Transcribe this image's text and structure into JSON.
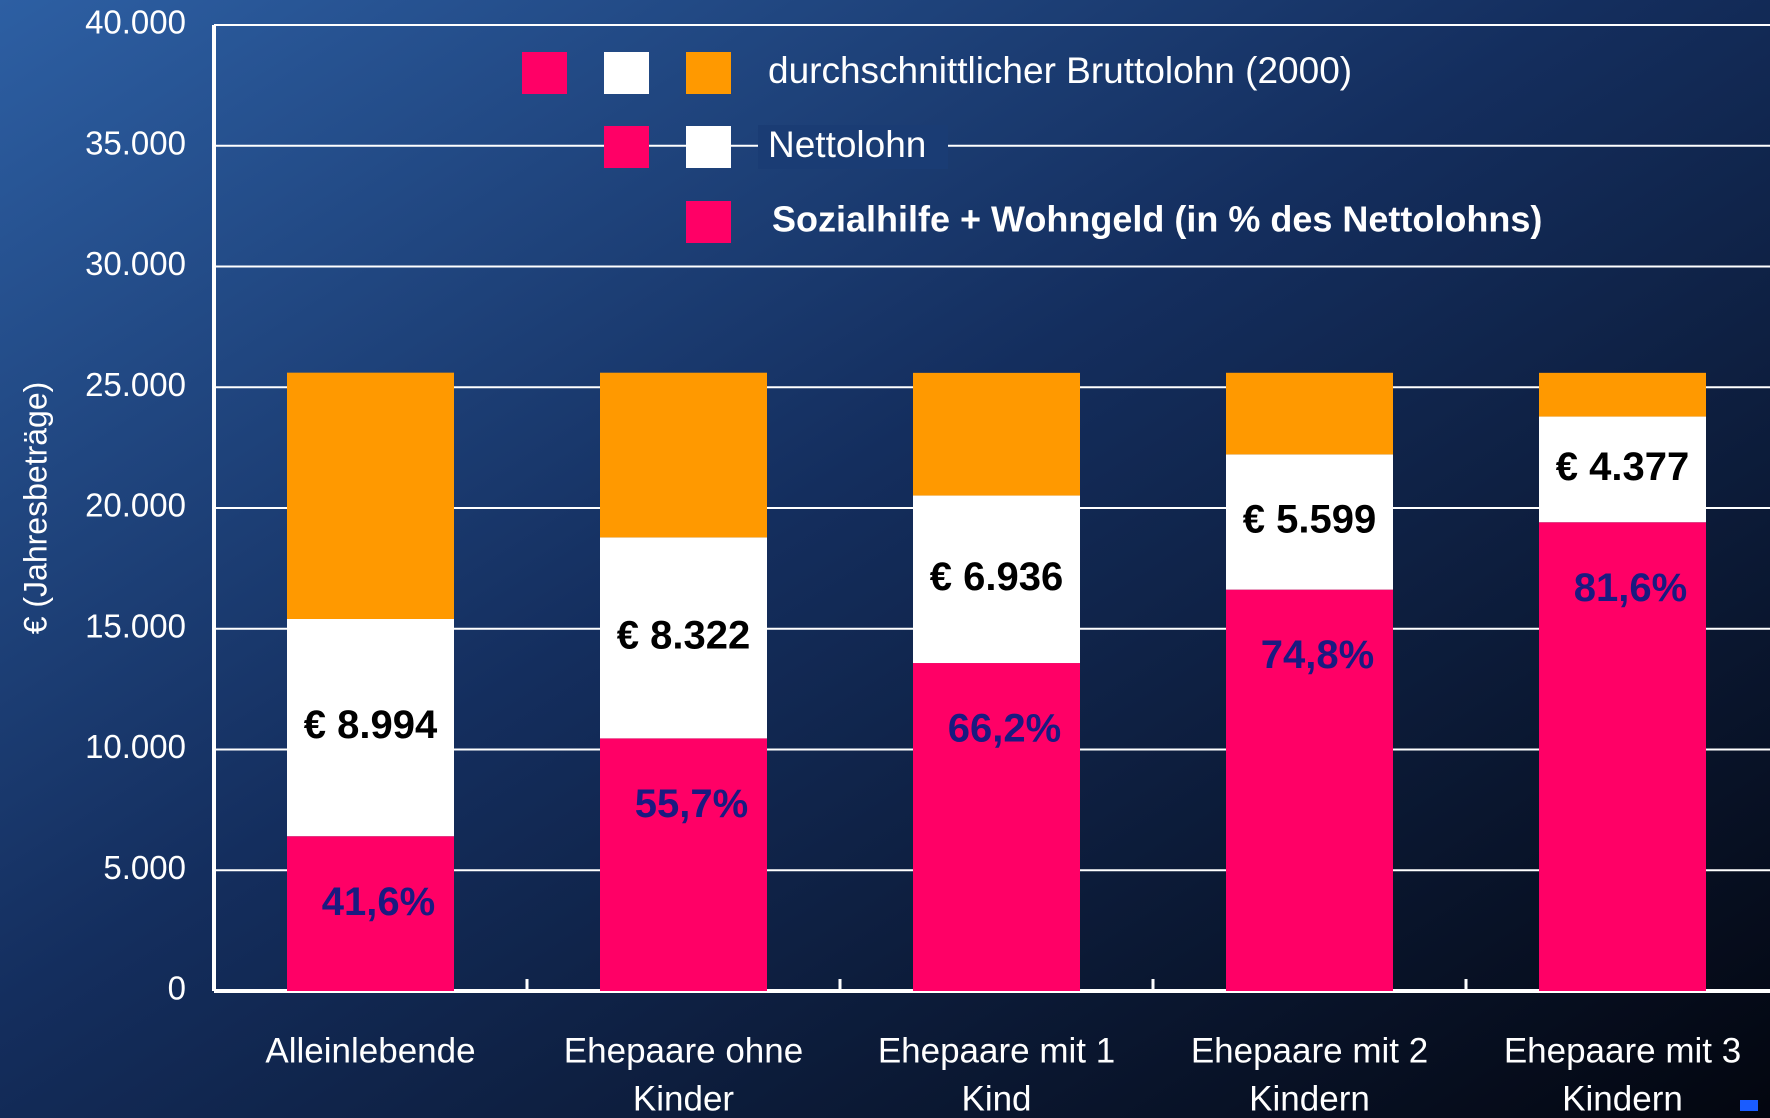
{
  "chart_data": {
    "type": "stacked-bar",
    "y_label": "€  (Jahresbeträge)",
    "categories": [
      [
        "Alleinlebende"
      ],
      [
        "Ehepaare ohne",
        "Kinder"
      ],
      [
        "Ehepaare mit 1",
        "Kind"
      ],
      [
        "Ehepaare mit 2",
        "Kindern"
      ],
      [
        "Ehepaare mit 3",
        "Kindern"
      ]
    ],
    "series": [
      {
        "name": "Sozialhilfe + Wohngeld (in % des Nettolohns)",
        "color": "#ff0066",
        "values": [
          6410,
          10460,
          13580,
          16620,
          19410
        ],
        "shares": [
          41.6,
          55.7,
          66.2,
          74.8,
          81.6
        ],
        "share_labels": [
          "41,6%",
          "55,7%",
          "66,2%",
          "74,8%",
          "81,6%"
        ]
      },
      {
        "name": "Nettolohn",
        "color": "#ffffff",
        "values": [
          8994,
          8322,
          6936,
          5599,
          4377
        ],
        "value_labels": [
          "€ 8.994",
          "€ 8.322",
          "€ 6.936",
          "€ 5.599",
          "€ 4.377"
        ]
      },
      {
        "name": "durchschnittlicher Bruttolohn (2000)",
        "color": "#ff9900",
        "values": [
          10200,
          6820,
          5080,
          3380,
          1810
        ]
      }
    ],
    "ylim": [
      0,
      40000
    ],
    "yticks": [
      0,
      {
        "value": 5000,
        "label": "5.000"
      },
      {
        "value": 10000,
        "label": "10.000"
      },
      {
        "value": 15000,
        "label": "15.000"
      },
      {
        "value": 20000,
        "label": "20.000"
      },
      {
        "value": 25000,
        "label": "25.000"
      },
      {
        "value": 30000,
        "label": "30.000"
      },
      {
        "value": 35000,
        "label": "35.000"
      },
      {
        "value": 40000,
        "label": "40.000"
      }
    ],
    "grid": true
  }
}
